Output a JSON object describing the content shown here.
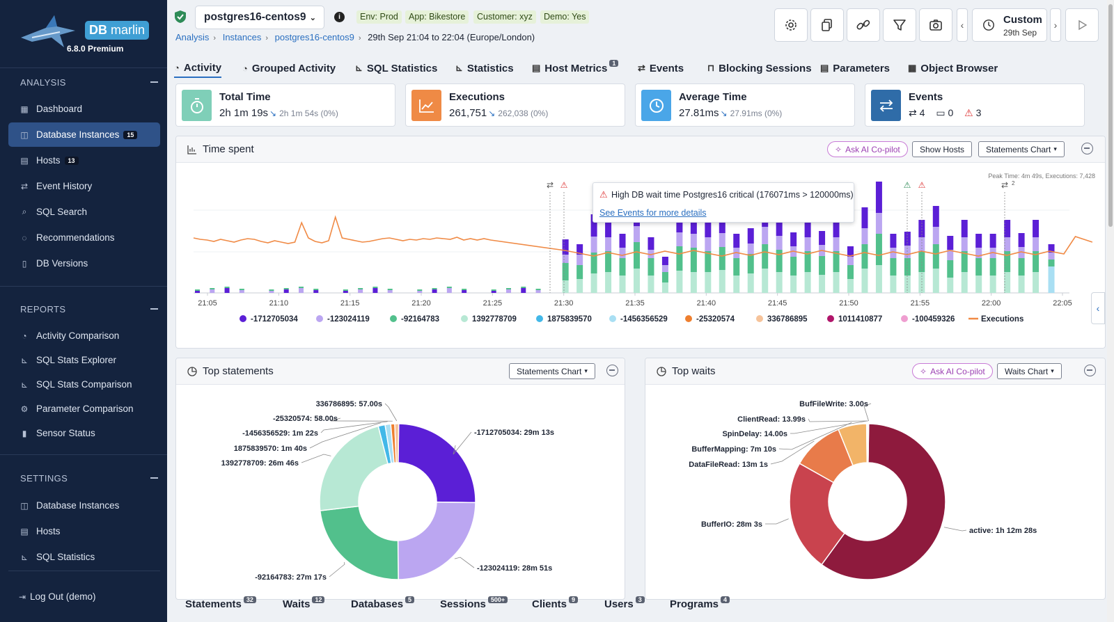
{
  "brand": {
    "name_db": "DB",
    "name_rest": "marlin",
    "version": "6.8.0 Premium"
  },
  "sidebar": {
    "analysis_header": "ANALYSIS",
    "analysis_items": [
      {
        "label": "Dashboard",
        "icon": "grid-icon"
      },
      {
        "label": "Database Instances",
        "count": "15",
        "icon": "database-icon",
        "active": true
      },
      {
        "label": "Hosts",
        "count": "13",
        "icon": "server-icon"
      },
      {
        "label": "Event History",
        "icon": "exchange-icon"
      },
      {
        "label": "SQL Search",
        "icon": "search-icon"
      },
      {
        "label": "Recommendations",
        "icon": "lightbulb-icon"
      },
      {
        "label": "DB Versions",
        "icon": "document-icon"
      }
    ],
    "reports_header": "REPORTS",
    "reports_items": [
      {
        "label": "Activity Comparison",
        "icon": "stopwatch-icon"
      },
      {
        "label": "SQL Stats Explorer",
        "icon": "chart-icon"
      },
      {
        "label": "SQL Stats Comparison",
        "icon": "chart-icon"
      },
      {
        "label": "Parameter Comparison",
        "icon": "gear-icon"
      },
      {
        "label": "Sensor Status",
        "icon": "sensor-icon"
      }
    ],
    "settings_header": "SETTINGS",
    "settings_items": [
      {
        "label": "Database Instances",
        "icon": "database-icon"
      },
      {
        "label": "Hosts",
        "icon": "server-icon"
      },
      {
        "label": "SQL Statistics",
        "icon": "chart-icon"
      }
    ],
    "logout": "Log Out (demo)"
  },
  "header": {
    "instance": "postgres16-centos9",
    "tags": [
      "Env: Prod",
      "App: Bikestore",
      "Customer: xyz",
      "Demo: Yes"
    ],
    "breadcrumb": [
      "Analysis",
      "Instances",
      "postgres16-centos9"
    ],
    "time_range": "29th Sep 21:04 to 22:04 (Europe/London)",
    "custom_title": "Custom",
    "custom_sub": "29th Sep"
  },
  "tabs": [
    {
      "label": "Activity",
      "active": true
    },
    {
      "label": "Grouped Activity"
    },
    {
      "label": "SQL Statistics"
    },
    {
      "label": "Statistics"
    },
    {
      "label": "Host Metrics",
      "badge": "1"
    },
    {
      "label": "Events"
    },
    {
      "label": "Blocking Sessions"
    },
    {
      "label": "Parameters"
    },
    {
      "label": "Object Browser"
    }
  ],
  "kpis": [
    {
      "title": "Total Time",
      "value": "2h 1m 19s",
      "compare": "2h 1m 54s (0%)",
      "color": "#7fcfb8"
    },
    {
      "title": "Executions",
      "value": "261,751",
      "compare": "262,038 (0%)",
      "color": "#ef8a45"
    },
    {
      "title": "Average Time",
      "value": "27.81ms",
      "compare": "27.91ms (0%)",
      "color": "#4aa6e8"
    },
    {
      "title": "Events",
      "ev_exchange": "4",
      "ev_calendar": "0",
      "ev_warning": "3",
      "color": "#2f6ca8"
    }
  ],
  "time_spent": {
    "title": "Time spent",
    "ai_button": "Ask AI Co-pilot",
    "show_hosts": "Show Hosts",
    "chart_select": "Statements Chart",
    "peak": "Peak Time: 4m 49s, Executions: 7,428",
    "tooltip_text": "High DB wait time Postgres16 critical (176071ms > 120000ms)",
    "tooltip_link": "See Events for more details",
    "event_count_label": "2"
  },
  "chart_data": [
    {
      "type": "bar",
      "title": "Time spent",
      "x_ticks": [
        "21:05",
        "21:10",
        "21:15",
        "21:20",
        "21:25",
        "21:30",
        "21:35",
        "21:40",
        "21:45",
        "21:50",
        "21:55",
        "22:00",
        "22:05"
      ],
      "series": [
        {
          "name": "-1712705034",
          "color": "#5b1fd6"
        },
        {
          "name": "-123024119",
          "color": "#bba6f1"
        },
        {
          "name": "-92164783",
          "color": "#52c08c"
        },
        {
          "name": "1392778709",
          "color": "#b7e8d4"
        },
        {
          "name": "1875839570",
          "color": "#43b8e8"
        },
        {
          "name": "-1456356529",
          "color": "#a9dff3"
        },
        {
          "name": "-25320574",
          "color": "#ee7f2f"
        },
        {
          "name": "336786895",
          "color": "#f6c39a"
        },
        {
          "name": "1011410877",
          "color": "#b0156a"
        },
        {
          "name": "-100459326",
          "color": "#ef9ed0"
        },
        {
          "name": "Executions",
          "color": "#f08a45",
          "kind": "line"
        }
      ],
      "bars_after_2130": [
        [
          0.22,
          0.12,
          0.25,
          0.18
        ],
        [
          0.15,
          0.15,
          0.2,
          0.2
        ],
        [
          0.32,
          0.23,
          0.3,
          0.28
        ],
        [
          0.25,
          0.2,
          0.3,
          0.3
        ],
        [
          0.2,
          0.15,
          0.25,
          0.25
        ],
        [
          0.25,
          0.23,
          0.38,
          0.35
        ],
        [
          0.18,
          0.12,
          0.25,
          0.25
        ],
        [
          0.12,
          0.1,
          0.15,
          0.15
        ],
        [
          0.3,
          0.2,
          0.35,
          0.32
        ],
        [
          0.28,
          0.2,
          0.35,
          0.3
        ],
        [
          0.25,
          0.2,
          0.3,
          0.3
        ],
        [
          0.27,
          0.2,
          0.33,
          0.33
        ],
        [
          0.2,
          0.15,
          0.25,
          0.25
        ],
        [
          0.22,
          0.15,
          0.28,
          0.28
        ],
        [
          0.3,
          0.25,
          0.35,
          0.35
        ],
        [
          0.25,
          0.2,
          0.32,
          0.3
        ],
        [
          0.2,
          0.15,
          0.27,
          0.25
        ],
        [
          0.25,
          0.2,
          0.3,
          0.3
        ],
        [
          0.2,
          0.16,
          0.27,
          0.26
        ],
        [
          0.25,
          0.2,
          0.3,
          0.3
        ],
        [
          0.15,
          0.12,
          0.2,
          0.2
        ],
        [
          0.3,
          0.23,
          0.35,
          0.35
        ],
        [
          0.45,
          0.3,
          0.45,
          0.4
        ],
        [
          0.2,
          0.15,
          0.25,
          0.25
        ],
        [
          0.2,
          0.18,
          0.25,
          0.25
        ],
        [
          0.25,
          0.2,
          0.3,
          0.3
        ],
        [
          0.3,
          0.25,
          0.35,
          0.35
        ],
        [
          0.2,
          0.15,
          0.25,
          0.22
        ],
        [
          0.25,
          0.2,
          0.3,
          0.3
        ],
        [
          0.2,
          0.15,
          0.25,
          0.25
        ],
        [
          0.2,
          0.15,
          0.25,
          0.25
        ],
        [
          0.25,
          0.2,
          0.3,
          0.3
        ],
        [
          0.2,
          0.16,
          0.25,
          0.25
        ],
        [
          0.25,
          0.2,
          0.3,
          0.3
        ],
        [
          0.12,
          0.1,
          0.1,
          0.38
        ]
      ]
    },
    {
      "type": "pie",
      "title": "Top statements",
      "labels": [
        "-1712705034",
        "-123024119",
        "-92164783",
        "1392778709",
        "1875839570",
        "-1456356529",
        "-25320574",
        "336786895"
      ],
      "values": [
        1753,
        1731,
        1637,
        1606,
        100,
        82,
        58,
        57
      ],
      "display": [
        "29m 13s",
        "28m 51s",
        "27m 17s",
        "26m 46s",
        "1m 40s",
        "1m 22s",
        "58.00s",
        "57.00s"
      ],
      "colors": [
        "#5b1fd6",
        "#bba6f1",
        "#52c08c",
        "#b7e8d4",
        "#43b8e8",
        "#a9dff3",
        "#ee7f2f",
        "#f6c39a"
      ]
    },
    {
      "type": "pie",
      "title": "Top waits",
      "labels": [
        "active",
        "BufferIO",
        "DataFileRead",
        "BufferMapping",
        "SpinDelay",
        "ClientRead",
        "BufFileWrite"
      ],
      "values": [
        4348,
        1683,
        781,
        430,
        14,
        13.99,
        3
      ],
      "display": [
        "1h 12m 28s",
        "28m 3s",
        "13m 1s",
        "7m 10s",
        "14.00s",
        "13.99s",
        "3.00s"
      ],
      "colors": [
        "#8e1a3d",
        "#c9434e",
        "#e87b4a",
        "#f2b468",
        "#f7d08a",
        "#f7e0a0",
        "#f0e6b0"
      ]
    }
  ],
  "top_statements": {
    "title": "Top statements",
    "chart_select": "Statements Chart"
  },
  "top_waits": {
    "title": "Top waits",
    "ai_button": "Ask AI Co-pilot",
    "chart_select": "Waits Chart"
  },
  "bottom_tabs": [
    {
      "label": "Statements",
      "badge": "32"
    },
    {
      "label": "Waits",
      "badge": "12"
    },
    {
      "label": "Databases",
      "badge": "5"
    },
    {
      "label": "Sessions",
      "badge": "500+"
    },
    {
      "label": "Clients",
      "badge": "9"
    },
    {
      "label": "Users",
      "badge": "3"
    },
    {
      "label": "Programs",
      "badge": "4"
    }
  ]
}
